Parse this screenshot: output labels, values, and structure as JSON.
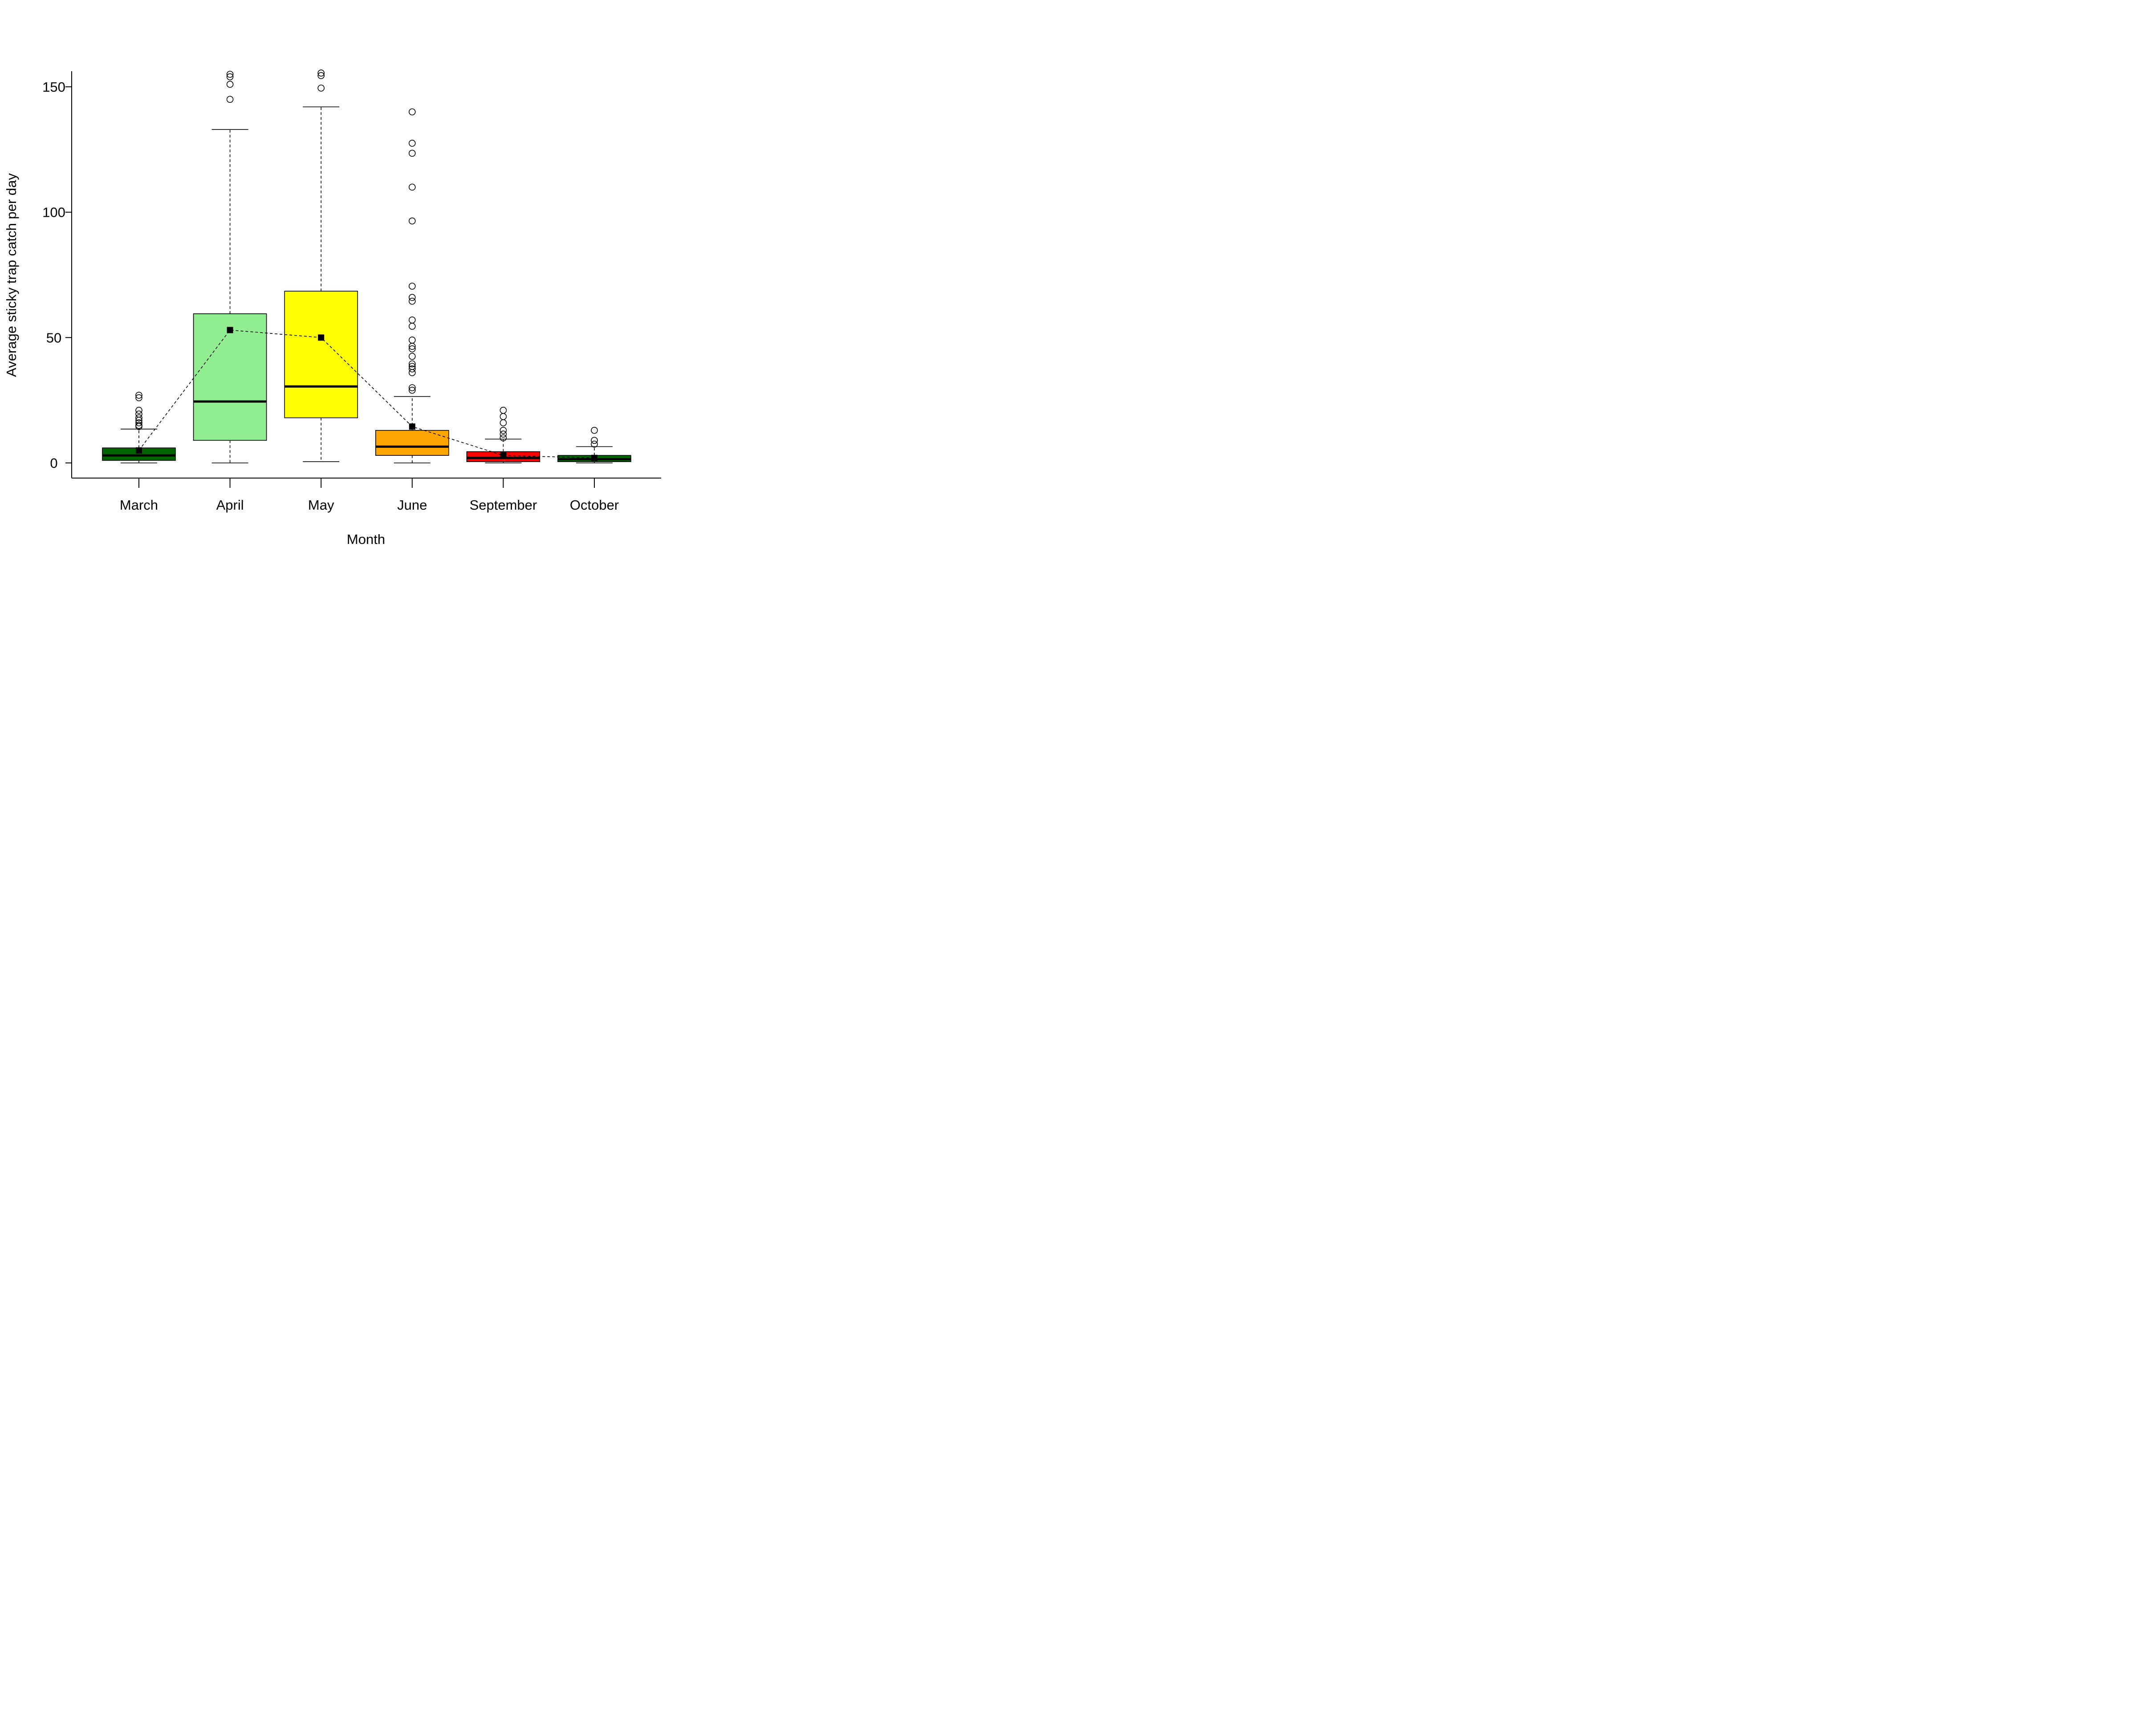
{
  "chart_data": {
    "type": "box",
    "title": "",
    "xlabel": "Month",
    "ylabel": "Average sticky trap catch per day",
    "yticks": [
      0,
      50,
      100,
      150
    ],
    "ylim": [
      -6,
      156
    ],
    "categories": [
      "March",
      "April",
      "May",
      "June",
      "September",
      "October"
    ],
    "boxes": [
      {
        "name": "March",
        "whisker_low": 0,
        "q1": 1,
        "median": 3,
        "q3": 6,
        "whisker_high": 13.5,
        "mean": 5,
        "outliers": [
          14.5,
          15,
          16,
          17,
          18,
          19.5,
          21,
          26,
          27
        ],
        "fill": "#006400"
      },
      {
        "name": "April",
        "whisker_low": 0,
        "q1": 9,
        "median": 24.5,
        "q3": 59.5,
        "whisker_high": 133,
        "mean": 53,
        "outliers": [
          145,
          151,
          154,
          155
        ],
        "fill": "#90EE90"
      },
      {
        "name": "May",
        "whisker_low": 0.5,
        "q1": 18,
        "median": 30.5,
        "q3": 68.5,
        "whisker_high": 142,
        "mean": 50,
        "outliers": [
          149.5,
          154.5,
          155.5
        ],
        "fill": "#FFFF00"
      },
      {
        "name": "June",
        "whisker_low": 0,
        "q1": 3,
        "median": 6.5,
        "q3": 13,
        "whisker_high": 26.5,
        "mean": 14.5,
        "outliers": [
          29,
          30,
          36,
          37.5,
          38.5,
          39.5,
          42.5,
          45.5,
          46.5,
          49,
          54.5,
          57,
          64.5,
          66,
          70.5,
          96.5,
          110,
          123.5,
          127.5,
          140
        ],
        "fill": "#FFA500"
      },
      {
        "name": "September",
        "whisker_low": 0,
        "q1": 0.5,
        "median": 2,
        "q3": 4.5,
        "whisker_high": 9.5,
        "mean": 3,
        "outliers": [
          10,
          11.5,
          13,
          16,
          18.5,
          21
        ],
        "fill": "#FF0000"
      },
      {
        "name": "October",
        "whisker_low": 0,
        "q1": 0.5,
        "median": 1.5,
        "q3": 3,
        "whisker_high": 6.5,
        "mean": 2,
        "outliers": [
          7.5,
          9,
          13
        ],
        "fill": "#006400"
      }
    ],
    "mean_line": {
      "style": "dashed",
      "marker": "square",
      "color": "#000000"
    },
    "grid": false,
    "legend": "none"
  }
}
